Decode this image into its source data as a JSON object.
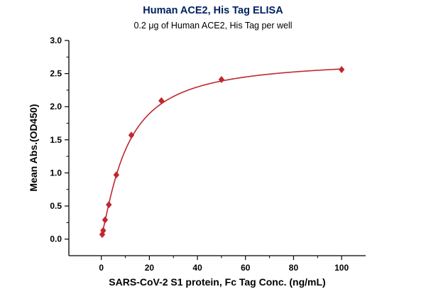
{
  "chart_data": {
    "type": "scatter",
    "title": "Human ACE2, His Tag ELISA",
    "subtitle": "0.2 μg of Human ACE2, His Tag per well",
    "xlabel": "SARS-CoV-2 S1 protein, Fc Tag Conc. (ng/mL)",
    "ylabel": "Mean Abs.(OD450)",
    "x": [
      0.39,
      0.78,
      1.56,
      3.13,
      6.25,
      12.5,
      25,
      50,
      100
    ],
    "y": [
      0.07,
      0.13,
      0.29,
      0.52,
      0.97,
      1.57,
      2.09,
      2.41,
      2.56
    ],
    "xlim": [
      -13.5,
      110
    ],
    "ylim": [
      -0.25,
      3.0
    ],
    "x_ticks": [
      0,
      20,
      40,
      60,
      80,
      100
    ],
    "x_minor_ticks": [
      10,
      30,
      50,
      70,
      90
    ],
    "y_ticks": [
      0.0,
      0.5,
      1.0,
      1.5,
      2.0,
      2.5,
      3.0
    ],
    "y_minor_ticks": [
      0.25,
      0.75,
      1.25,
      1.75,
      2.25,
      2.75
    ],
    "grid": false,
    "legend": "none",
    "marker": "diamond",
    "marker_color": "#c0272e",
    "line_color": "#c0272e",
    "axis_color": "#000000",
    "title_color": "#002060",
    "fit_curve": {
      "model": "4PL",
      "bottom": 0.05,
      "top": 2.72,
      "ec50": 10.5,
      "hill": 1.25
    }
  }
}
